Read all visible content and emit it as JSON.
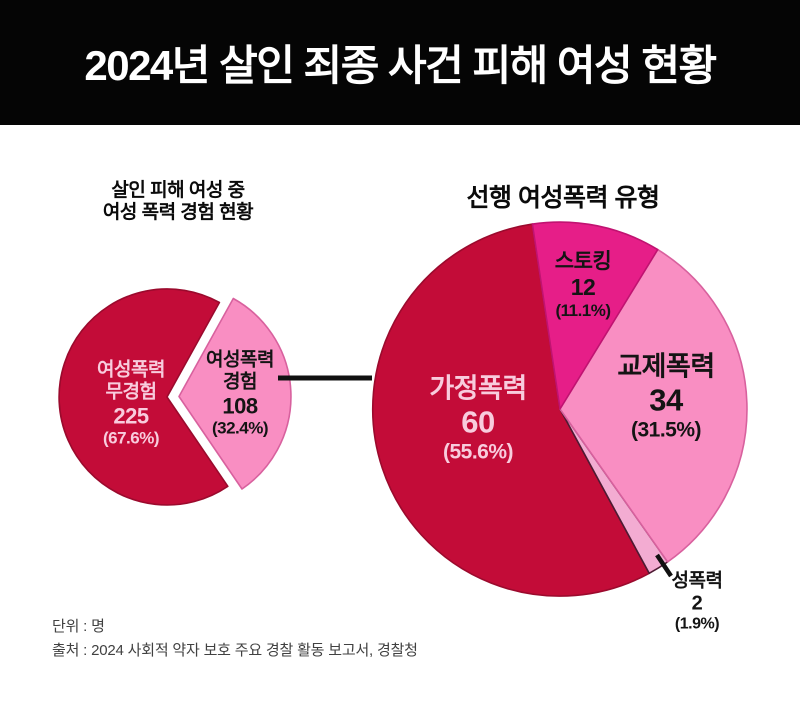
{
  "header": {
    "title": "2024년 살인 죄종 사건 피해 여성 현황",
    "bg_color": "#050505",
    "text_color": "#ffffff"
  },
  "chart_data": [
    {
      "type": "pie",
      "title": "살인 피해 여성 중 여성 폭력 경험 현황",
      "title_lines": [
        "살인 피해 여성 중",
        "여성 폭력 경험 현황"
      ],
      "unit": "명",
      "slices": [
        {
          "label": "여성폭력 경험",
          "label_lines": [
            "여성폭력",
            "경험"
          ],
          "value": 108,
          "pct": "(32.4%)",
          "color": "#F98EC2",
          "stroke": "#D8619E",
          "text_color": "#141414",
          "exploded": true
        },
        {
          "label": "여성폭력 무경험",
          "label_lines": [
            "여성폭력",
            "무경험"
          ],
          "value": 225,
          "pct": "(67.6%)",
          "color": "#C30C38",
          "stroke": "#9B0A2D",
          "text_color": "#F8CCDD",
          "exploded": false
        }
      ]
    },
    {
      "type": "pie",
      "title": "선행 여성폭력 유형",
      "unit": "명",
      "slices": [
        {
          "label": "스토킹",
          "label_lines": [
            "스토킹"
          ],
          "value": 12,
          "pct": "(11.1%)",
          "color": "#E61E88",
          "stroke": "#C01371",
          "text_color": "#141414"
        },
        {
          "label": "교제폭력",
          "label_lines": [
            "교제폭력"
          ],
          "value": 34,
          "pct": "(31.5%)",
          "color": "#F98EC2",
          "stroke": "#D8619E",
          "text_color": "#141414"
        },
        {
          "label": "성폭력",
          "label_lines": [
            "성폭력"
          ],
          "value": 2,
          "pct": "(1.9%)",
          "color": "#F3ACD2",
          "stroke": "#4E1B33",
          "text_color": "#141414",
          "label_outside": true
        },
        {
          "label": "가정폭력",
          "label_lines": [
            "가정폭력"
          ],
          "value": 60,
          "pct": "(55.6%)",
          "color": "#C30C38",
          "stroke": "#9B0A2D",
          "text_color": "#F8CCDD"
        }
      ]
    }
  ],
  "footer": {
    "unit": "단위 : 명",
    "source": "출처 : 2024 사회적 약자 보호 주요 경찰 활동 보고서, 경찰청"
  }
}
